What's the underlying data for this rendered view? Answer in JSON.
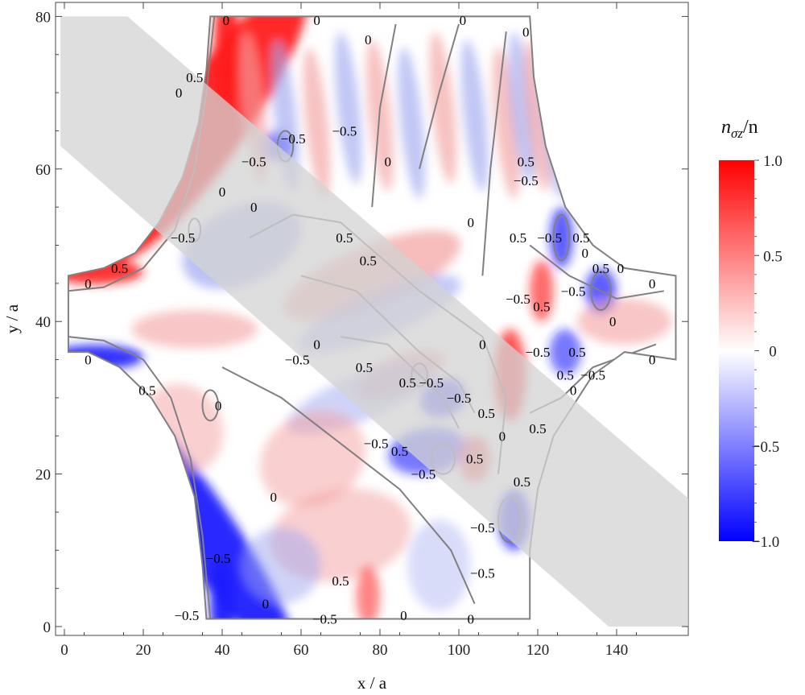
{
  "chart_data": {
    "type": "heatmap",
    "title": "",
    "xlabel": "x / a",
    "ylabel": "y / a",
    "xlim": [
      -2,
      155
    ],
    "ylim": [
      -1,
      81
    ],
    "x_ticks": [
      0,
      20,
      40,
      60,
      80,
      100,
      120,
      140
    ],
    "y_ticks": [
      0,
      20,
      40,
      60,
      80
    ],
    "colorbar": {
      "title": "n_σz/n",
      "title_parts": {
        "main": "n",
        "sub": "σz",
        "tail": "/n"
      },
      "range": [
        -1.0,
        1.0
      ],
      "ticks": [
        1.0,
        0.5,
        0,
        -0.5,
        -1.0
      ],
      "tick_labels": [
        "1.0",
        "0.5",
        "0",
        "−0.5",
        "−1.0"
      ],
      "colors": {
        "max": "#ff0000",
        "mid": "#ffffff",
        "min": "#0000ff"
      }
    },
    "contour_levels": [
      -0.5,
      0,
      0.5
    ],
    "shaded_band": {
      "color": "#dcdcdc",
      "description_from": [
        0,
        72
      ],
      "to": [
        152,
        3
      ]
    },
    "contour_labels": [
      {
        "x": 41,
        "y": 79.5,
        "text": "0"
      },
      {
        "x": 64,
        "y": 79.5,
        "text": "0"
      },
      {
        "x": 101,
        "y": 79.5,
        "text": "0"
      },
      {
        "x": 77,
        "y": 77,
        "text": "0"
      },
      {
        "x": 117,
        "y": 78,
        "text": "0"
      },
      {
        "x": 33,
        "y": 72,
        "text": "0.5"
      },
      {
        "x": 29,
        "y": 70,
        "text": "0"
      },
      {
        "x": 58,
        "y": 64,
        "text": "−0.5"
      },
      {
        "x": 71,
        "y": 65,
        "text": "−0.5"
      },
      {
        "x": 48,
        "y": 61,
        "text": "−0.5"
      },
      {
        "x": 82,
        "y": 61,
        "text": "0"
      },
      {
        "x": 117,
        "y": 61,
        "text": "0.5"
      },
      {
        "x": 117,
        "y": 58.5,
        "text": "−0.5"
      },
      {
        "x": 40,
        "y": 57,
        "text": "0"
      },
      {
        "x": 48,
        "y": 55,
        "text": "0"
      },
      {
        "x": 103,
        "y": 53,
        "text": "0"
      },
      {
        "x": 30,
        "y": 51,
        "text": "−0.5"
      },
      {
        "x": 71,
        "y": 51,
        "text": "0.5"
      },
      {
        "x": 115,
        "y": 51,
        "text": "0.5"
      },
      {
        "x": 123,
        "y": 51,
        "text": "−0.5"
      },
      {
        "x": 131,
        "y": 51,
        "text": "0.5"
      },
      {
        "x": 77,
        "y": 48,
        "text": "0.5"
      },
      {
        "x": 132,
        "y": 49,
        "text": "0"
      },
      {
        "x": 14,
        "y": 47,
        "text": "0.5"
      },
      {
        "x": 136,
        "y": 47,
        "text": "0.5"
      },
      {
        "x": 141,
        "y": 47,
        "text": "0"
      },
      {
        "x": 6,
        "y": 45,
        "text": "0"
      },
      {
        "x": 149,
        "y": 45,
        "text": "0"
      },
      {
        "x": 129,
        "y": 44,
        "text": "−0.5"
      },
      {
        "x": 115,
        "y": 43,
        "text": "−0.5"
      },
      {
        "x": 121,
        "y": 42,
        "text": "0.5"
      },
      {
        "x": 139,
        "y": 40,
        "text": "0"
      },
      {
        "x": 106,
        "y": 37,
        "text": "0"
      },
      {
        "x": 64,
        "y": 37,
        "text": "0"
      },
      {
        "x": 120,
        "y": 36,
        "text": "−0.5"
      },
      {
        "x": 130,
        "y": 36,
        "text": "0.5"
      },
      {
        "x": 59,
        "y": 35,
        "text": "−0.5"
      },
      {
        "x": 76,
        "y": 34,
        "text": "0.5"
      },
      {
        "x": 6,
        "y": 35,
        "text": "0"
      },
      {
        "x": 149,
        "y": 35,
        "text": "0"
      },
      {
        "x": 87,
        "y": 32,
        "text": "0.5"
      },
      {
        "x": 93,
        "y": 32,
        "text": "−0.5"
      },
      {
        "x": 127,
        "y": 33,
        "text": "0.5"
      },
      {
        "x": 134,
        "y": 33,
        "text": "−0.5"
      },
      {
        "x": 21,
        "y": 31,
        "text": "0.5"
      },
      {
        "x": 129,
        "y": 31,
        "text": "0"
      },
      {
        "x": 100,
        "y": 30,
        "text": "−0.5"
      },
      {
        "x": 39,
        "y": 29,
        "text": "0"
      },
      {
        "x": 107,
        "y": 28,
        "text": "0.5"
      },
      {
        "x": 120,
        "y": 26,
        "text": "0.5"
      },
      {
        "x": 111,
        "y": 25,
        "text": "0"
      },
      {
        "x": 79,
        "y": 24,
        "text": "−0.5"
      },
      {
        "x": 85,
        "y": 23,
        "text": "0.5"
      },
      {
        "x": 104,
        "y": 22,
        "text": "0.5"
      },
      {
        "x": 91,
        "y": 20,
        "text": "−0.5"
      },
      {
        "x": 116,
        "y": 19,
        "text": "0.5"
      },
      {
        "x": 53,
        "y": 17,
        "text": "0"
      },
      {
        "x": 106,
        "y": 13,
        "text": "−0.5"
      },
      {
        "x": 39,
        "y": 9,
        "text": "−0.5"
      },
      {
        "x": 106,
        "y": 7,
        "text": "−0.5"
      },
      {
        "x": 70,
        "y": 6,
        "text": "0.5"
      },
      {
        "x": 51,
        "y": 3,
        "text": "0"
      },
      {
        "x": 31,
        "y": 1.5,
        "text": "−0.5"
      },
      {
        "x": 66,
        "y": 1,
        "text": "−0.5"
      },
      {
        "x": 86,
        "y": 1.5,
        "text": "0"
      },
      {
        "x": 103,
        "y": 1,
        "text": "0"
      }
    ]
  }
}
